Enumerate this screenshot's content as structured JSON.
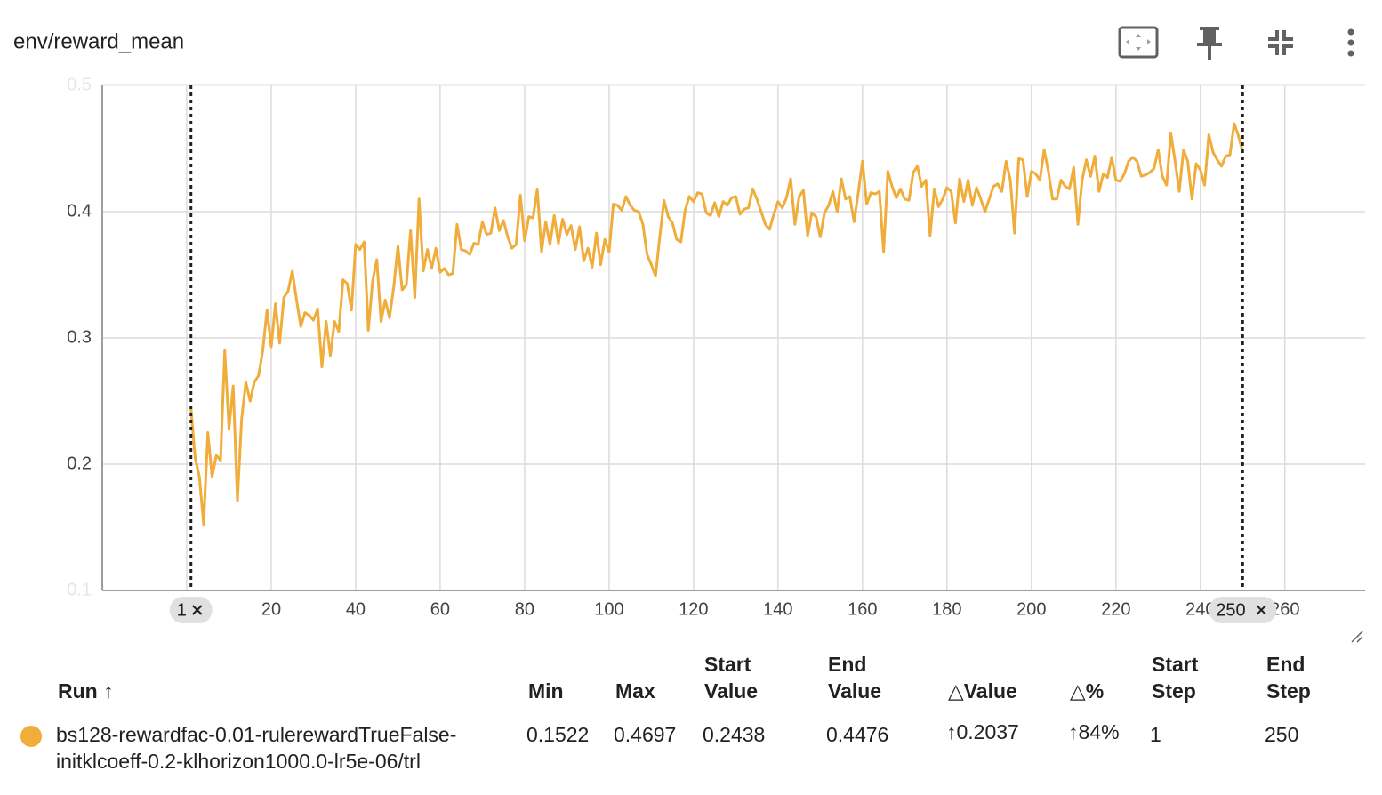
{
  "chart_data": {
    "type": "line",
    "title": "env/reward_mean",
    "color": "#f0ad3c",
    "grid": true,
    "xlim": [
      -20,
      279
    ],
    "xticks": [
      0,
      20,
      40,
      60,
      80,
      100,
      120,
      140,
      160,
      180,
      200,
      220,
      240,
      260
    ],
    "ylim": [
      0.1,
      0.5
    ],
    "yticks": [
      0.1,
      0.2,
      0.3,
      0.4,
      0.5
    ],
    "range": [
      1,
      250
    ],
    "x": [
      1,
      2,
      3,
      4,
      5,
      6,
      7,
      8,
      9,
      10,
      11,
      12,
      13,
      14,
      15,
      16,
      17,
      18,
      19,
      20,
      21,
      22,
      23,
      24,
      25,
      26,
      27,
      28,
      29,
      30,
      31,
      32,
      33,
      34,
      35,
      36,
      37,
      38,
      39,
      40,
      41,
      42,
      43,
      44,
      45,
      46,
      47,
      48,
      49,
      50,
      51,
      52,
      53,
      54,
      55,
      56,
      57,
      58,
      59,
      60,
      61,
      62,
      63,
      64,
      65,
      66,
      67,
      68,
      69,
      70,
      71,
      72,
      73,
      74,
      75,
      76,
      77,
      78,
      79,
      80,
      81,
      82,
      83,
      84,
      85,
      86,
      87,
      88,
      89,
      90,
      91,
      92,
      93,
      94,
      95,
      96,
      97,
      98,
      99,
      100,
      101,
      102,
      103,
      104,
      105,
      106,
      107,
      108,
      109,
      110,
      111,
      112,
      113,
      114,
      115,
      116,
      117,
      118,
      119,
      120,
      121,
      122,
      123,
      124,
      125,
      126,
      127,
      128,
      129,
      130,
      131,
      132,
      133,
      134,
      135,
      136,
      137,
      138,
      139,
      140,
      141,
      142,
      143,
      144,
      145,
      146,
      147,
      148,
      149,
      150,
      151,
      152,
      153,
      154,
      155,
      156,
      157,
      158,
      159,
      160,
      161,
      162,
      163,
      164,
      165,
      166,
      167,
      168,
      169,
      170,
      171,
      172,
      173,
      174,
      175,
      176,
      177,
      178,
      179,
      180,
      181,
      182,
      183,
      184,
      185,
      186,
      187,
      188,
      189,
      190,
      191,
      192,
      193,
      194,
      195,
      196,
      197,
      198,
      199,
      200,
      201,
      202,
      203,
      204,
      205,
      206,
      207,
      208,
      209,
      210,
      211,
      212,
      213,
      214,
      215,
      216,
      217,
      218,
      219,
      220,
      221,
      222,
      223,
      224,
      225,
      226,
      227,
      228,
      229,
      230,
      231,
      232,
      233,
      234,
      235,
      236,
      237,
      238,
      239,
      240,
      241,
      242,
      243,
      244,
      245,
      246,
      247,
      248,
      249,
      250
    ],
    "values": [
      0.2438,
      0.205,
      0.19,
      0.1522,
      0.225,
      0.19,
      0.207,
      0.203,
      0.29,
      0.228,
      0.262,
      0.171,
      0.236,
      0.265,
      0.25,
      0.265,
      0.27,
      0.29,
      0.322,
      0.293,
      0.327,
      0.296,
      0.332,
      0.337,
      0.353,
      0.33,
      0.309,
      0.32,
      0.318,
      0.314,
      0.323,
      0.277,
      0.313,
      0.286,
      0.313,
      0.305,
      0.346,
      0.343,
      0.322,
      0.374,
      0.37,
      0.376,
      0.306,
      0.345,
      0.362,
      0.313,
      0.33,
      0.316,
      0.34,
      0.373,
      0.338,
      0.342,
      0.385,
      0.332,
      0.41,
      0.353,
      0.37,
      0.355,
      0.371,
      0.352,
      0.355,
      0.35,
      0.351,
      0.39,
      0.37,
      0.369,
      0.366,
      0.375,
      0.374,
      0.392,
      0.382,
      0.383,
      0.403,
      0.385,
      0.393,
      0.38,
      0.371,
      0.374,
      0.413,
      0.377,
      0.396,
      0.395,
      0.418,
      0.368,
      0.392,
      0.374,
      0.397,
      0.375,
      0.394,
      0.382,
      0.389,
      0.37,
      0.388,
      0.361,
      0.371,
      0.356,
      0.383,
      0.358,
      0.378,
      0.368,
      0.406,
      0.405,
      0.401,
      0.412,
      0.405,
      0.401,
      0.4,
      0.39,
      0.366,
      0.358,
      0.349,
      0.38,
      0.409,
      0.396,
      0.391,
      0.378,
      0.376,
      0.401,
      0.412,
      0.408,
      0.415,
      0.414,
      0.399,
      0.397,
      0.407,
      0.396,
      0.408,
      0.405,
      0.411,
      0.412,
      0.398,
      0.402,
      0.403,
      0.418,
      0.41,
      0.4,
      0.39,
      0.386,
      0.398,
      0.408,
      0.403,
      0.411,
      0.426,
      0.39,
      0.412,
      0.417,
      0.381,
      0.399,
      0.396,
      0.38,
      0.399,
      0.405,
      0.416,
      0.4,
      0.426,
      0.41,
      0.412,
      0.392,
      0.415,
      0.44,
      0.406,
      0.415,
      0.414,
      0.416,
      0.368,
      0.432,
      0.42,
      0.411,
      0.418,
      0.41,
      0.409,
      0.431,
      0.436,
      0.42,
      0.425,
      0.381,
      0.418,
      0.404,
      0.41,
      0.419,
      0.416,
      0.391,
      0.426,
      0.408,
      0.425,
      0.405,
      0.419,
      0.41,
      0.4,
      0.41,
      0.42,
      0.422,
      0.416,
      0.44,
      0.425,
      0.383,
      0.442,
      0.441,
      0.412,
      0.432,
      0.43,
      0.425,
      0.449,
      0.432,
      0.41,
      0.41,
      0.425,
      0.42,
      0.418,
      0.435,
      0.39,
      0.425,
      0.441,
      0.428,
      0.444,
      0.416,
      0.43,
      0.427,
      0.443,
      0.425,
      0.424,
      0.43,
      0.44,
      0.443,
      0.44,
      0.428,
      0.429,
      0.431,
      0.434,
      0.449,
      0.428,
      0.421,
      0.462,
      0.44,
      0.416,
      0.449,
      0.44,
      0.41,
      0.438,
      0.433,
      0.421,
      0.461,
      0.447,
      0.441,
      0.436,
      0.444,
      0.445,
      0.4697,
      0.46,
      0.4476
    ]
  },
  "table": {
    "headers": [
      "Run",
      "Min",
      "Max",
      "Start Value",
      "End Value",
      "Value",
      "%",
      "Start Step",
      "End Step"
    ],
    "rows": [
      [
        "bs128-rewardfac-0.01-rulerewardTrueFalse-initklcoeff-0.2-klhorizon1000.0-lr5e-06/trl",
        "0.1522",
        "0.4697",
        "0.2438",
        "0.4476",
        "0.2037",
        "84%",
        "1",
        "250"
      ]
    ]
  }
}
